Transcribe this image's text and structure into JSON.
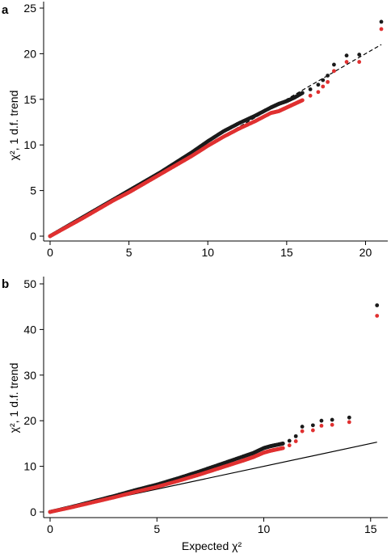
{
  "chart_data": [
    {
      "type": "scatter",
      "panel_label": "a",
      "xlabel": "",
      "ylabel": "χ², 1 d.f. trend",
      "xlim": [
        0,
        21
      ],
      "ylim": [
        0,
        25
      ],
      "xticks": [
        0,
        5,
        10,
        15,
        20
      ],
      "yticks": [
        0,
        5,
        10,
        15,
        20,
        25
      ],
      "reference_line": {
        "style": "dashed",
        "color": "#000000",
        "from": [
          0,
          0
        ],
        "to": [
          21,
          21
        ]
      },
      "series": [
        {
          "color": "#1a1a1a",
          "x": [
            0,
            1,
            2,
            3,
            4,
            5,
            6,
            7,
            8,
            9,
            10,
            11,
            12,
            13,
            14,
            14.5,
            15,
            15.5,
            16,
            16.5,
            17,
            17.3,
            17.6,
            18,
            18.8,
            19.6,
            21
          ],
          "y": [
            0,
            1.0,
            2.0,
            3.0,
            4.0,
            5.0,
            6.0,
            7.0,
            8.1,
            9.2,
            10.4,
            11.5,
            12.4,
            13.2,
            14.1,
            14.5,
            14.8,
            15.2,
            15.7,
            16.1,
            16.6,
            17.1,
            17.6,
            18.8,
            19.8,
            19.9,
            23.5
          ]
        },
        {
          "color": "#e03030",
          "x": [
            0,
            1,
            2,
            3,
            4,
            5,
            6,
            7,
            8,
            9,
            10,
            11,
            12,
            13,
            14,
            14.5,
            15,
            15.5,
            16,
            16.5,
            17,
            17.3,
            17.6,
            18,
            18.8,
            19.6,
            21
          ],
          "y": [
            0,
            0.95,
            1.9,
            2.9,
            3.9,
            4.8,
            5.8,
            6.8,
            7.8,
            8.8,
            9.9,
            10.9,
            11.8,
            12.6,
            13.5,
            13.7,
            14.1,
            14.5,
            14.9,
            15.4,
            15.8,
            16.4,
            16.9,
            18.1,
            19.1,
            19.1,
            22.7
          ]
        }
      ]
    },
    {
      "type": "scatter",
      "panel_label": "b",
      "xlabel": "Expected χ²",
      "ylabel": "χ², 1 d.f. trend",
      "xlim": [
        0,
        15.5
      ],
      "ylim": [
        0,
        50
      ],
      "xticks": [
        0,
        5,
        10,
        15
      ],
      "yticks": [
        0,
        10,
        20,
        30,
        40,
        50
      ],
      "reference_line": {
        "style": "solid",
        "color": "#000000",
        "from": [
          0,
          0
        ],
        "to": [
          15.3,
          15.3
        ]
      },
      "series": [
        {
          "color": "#1a1a1a",
          "x": [
            0,
            1,
            2,
            3,
            4,
            5,
            6,
            7,
            8,
            9,
            9.5,
            10,
            10.3,
            10.6,
            10.9,
            11.2,
            11.5,
            11.8,
            12.3,
            12.7,
            13.2,
            14,
            15.3
          ],
          "y": [
            0,
            1.1,
            2.3,
            3.5,
            4.8,
            6.0,
            7.4,
            8.9,
            10.5,
            12.1,
            12.9,
            14.0,
            14.4,
            14.7,
            15.0,
            15.6,
            16.6,
            18.7,
            19.0,
            20.0,
            20.2,
            20.7,
            45.3
          ]
        },
        {
          "color": "#e03030",
          "x": [
            0,
            1,
            2,
            3,
            4,
            5,
            6,
            7,
            8,
            9,
            9.5,
            10,
            10.3,
            10.6,
            10.9,
            11.2,
            11.5,
            11.8,
            12.3,
            12.7,
            13.2,
            14,
            15.3
          ],
          "y": [
            0,
            1.0,
            2.1,
            3.2,
            4.4,
            5.5,
            6.8,
            8.2,
            9.7,
            11.2,
            12.0,
            13.0,
            13.4,
            13.7,
            14.0,
            14.6,
            15.5,
            17.7,
            17.9,
            18.9,
            19.1,
            19.7,
            43.0
          ]
        }
      ]
    }
  ]
}
